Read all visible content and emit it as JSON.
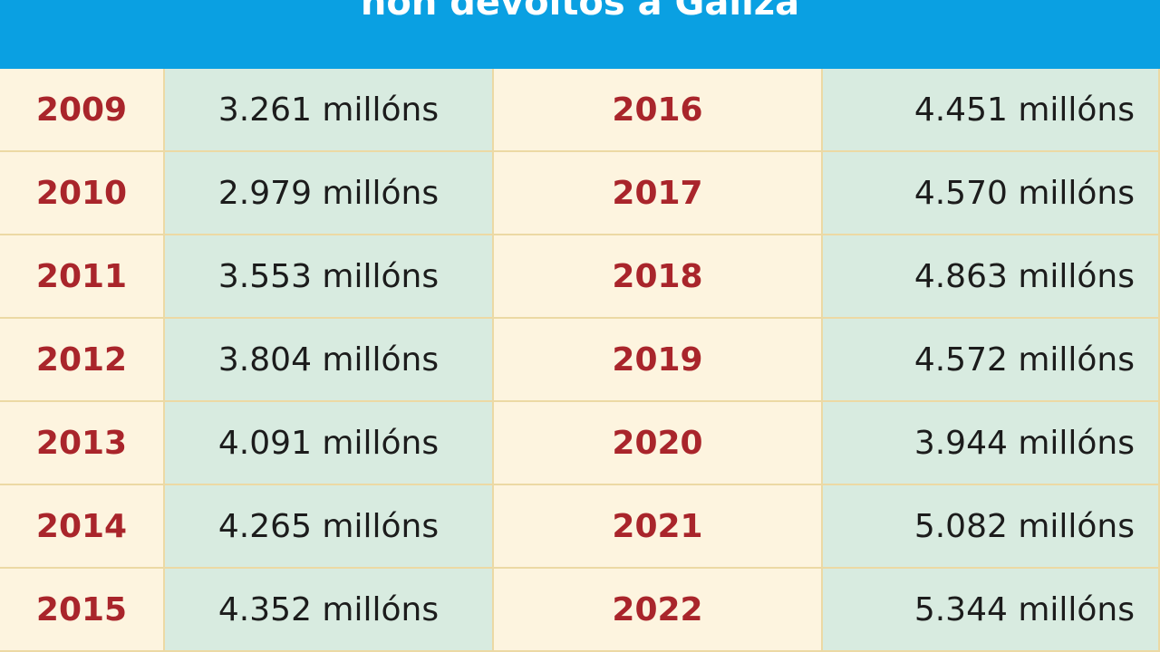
{
  "title": "non devoltos a Galiza",
  "colors": {
    "banner": "#0aa0e2",
    "year_text": "#a9252b",
    "year_cell": "#fdf4df",
    "value_cell": "#d8ebe0",
    "grid_line": "#ecd9a4"
  },
  "chart_data": {
    "type": "table",
    "title": "non devoltos a Galiza",
    "columns": [
      "year",
      "value"
    ],
    "unit": "millóns",
    "rows": [
      {
        "year": "2009",
        "value": 3261,
        "label": "3.261 millóns"
      },
      {
        "year": "2010",
        "value": 2979,
        "label": "2.979 millóns"
      },
      {
        "year": "2011",
        "value": 3553,
        "label": "3.553 millóns"
      },
      {
        "year": "2012",
        "value": 3804,
        "label": "3.804 millóns"
      },
      {
        "year": "2013",
        "value": 4091,
        "label": "4.091 millóns"
      },
      {
        "year": "2014",
        "value": 4265,
        "label": "4.265 millóns"
      },
      {
        "year": "2015",
        "value": 4352,
        "label": "4.352 millóns"
      },
      {
        "year": "2016",
        "value": 4451,
        "label": "4.451 millóns"
      },
      {
        "year": "2017",
        "value": 4570,
        "label": "4.570 millóns"
      },
      {
        "year": "2018",
        "value": 4863,
        "label": "4.863 millóns"
      },
      {
        "year": "2019",
        "value": 4572,
        "label": "4.572 millóns"
      },
      {
        "year": "2020",
        "value": 3944,
        "label": "3.944 millóns"
      },
      {
        "year": "2021",
        "value": 5082,
        "label": "5.082 millóns"
      },
      {
        "year": "2022",
        "value": 5344,
        "label": "5.344 millóns"
      }
    ]
  }
}
